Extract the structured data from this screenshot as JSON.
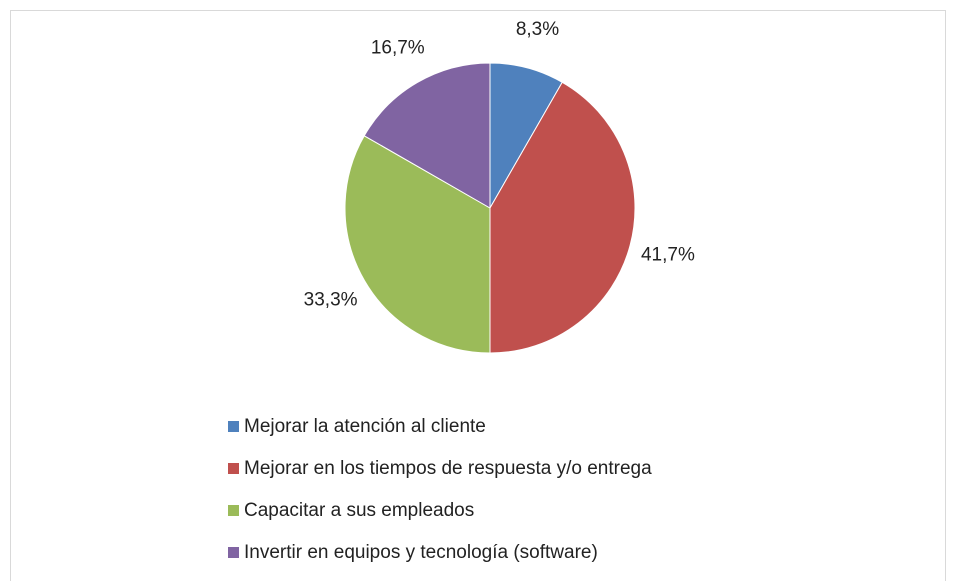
{
  "chart_data": {
    "type": "pie",
    "categories": [
      "Mejorar la atención al cliente",
      "Mejorar en los tiempos de respuesta y/o entrega",
      "Capacitar a sus empleados",
      "Invertir en equipos y tecnología (software)"
    ],
    "values": [
      8.3,
      41.7,
      33.3,
      16.7
    ],
    "value_labels": [
      "8,3%",
      "41,7%",
      "33,3%",
      "16,7%"
    ],
    "colors": [
      "#4f81bd",
      "#c0504d",
      "#9bbb59",
      "#8064a2"
    ]
  }
}
